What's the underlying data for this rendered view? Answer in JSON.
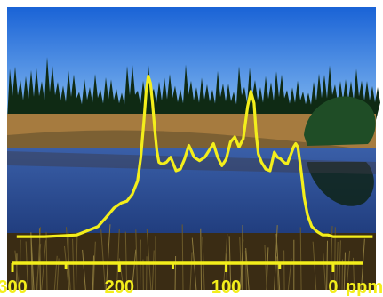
{
  "colors": {
    "sky_top": "#1a63d6",
    "sky_bottom": "#7fb6ef",
    "forest": "#0f2a14",
    "meadow": "#a67b3f",
    "water": "#1e3a7a",
    "trace": "#f3ee1b"
  },
  "chart_data": {
    "type": "line",
    "title": "",
    "xlabel": "",
    "ylabel": "",
    "x_unit": "ppm",
    "xlim": [
      305,
      -40
    ],
    "x_reversed": true,
    "ylim": [
      0,
      100
    ],
    "x_ticks": [
      {
        "value": 300,
        "label": "300"
      },
      {
        "value": 200,
        "label": "200"
      },
      {
        "value": 100,
        "label": "100"
      },
      {
        "value": 0,
        "label": "0"
      }
    ],
    "x_minor_ticks": [
      250,
      150,
      50,
      -50
    ],
    "series": [
      {
        "name": "",
        "x": [
          296,
          270,
          240,
          220,
          213,
          205,
          198,
          193,
          188,
          183,
          180,
          177,
          175,
          173,
          171,
          169,
          167,
          165,
          163,
          160,
          156,
          152,
          147,
          143,
          139,
          135,
          130,
          125,
          120,
          116,
          112,
          108,
          104,
          100,
          96,
          92,
          88,
          84,
          80,
          77,
          74,
          72,
          70,
          67,
          63,
          59,
          55,
          52,
          49,
          46,
          43,
          40,
          37,
          35,
          33,
          31,
          29,
          27,
          24,
          20,
          15,
          10,
          5,
          0,
          -10,
          -20,
          -30,
          -37
        ],
        "y": [
          1,
          1,
          2,
          7,
          12,
          18,
          21,
          22,
          26,
          34,
          48,
          70,
          87,
          96,
          92,
          80,
          65,
          52,
          45,
          44,
          45,
          48,
          40,
          41,
          47,
          55,
          48,
          46,
          48,
          52,
          56,
          48,
          43,
          47,
          57,
          60,
          54,
          59,
          78,
          87,
          80,
          62,
          50,
          45,
          41,
          40,
          51,
          48,
          47,
          45,
          44,
          49,
          54,
          56,
          54,
          45,
          35,
          24,
          14,
          7,
          4,
          2,
          2,
          1,
          1,
          1,
          1,
          1
        ]
      }
    ]
  }
}
